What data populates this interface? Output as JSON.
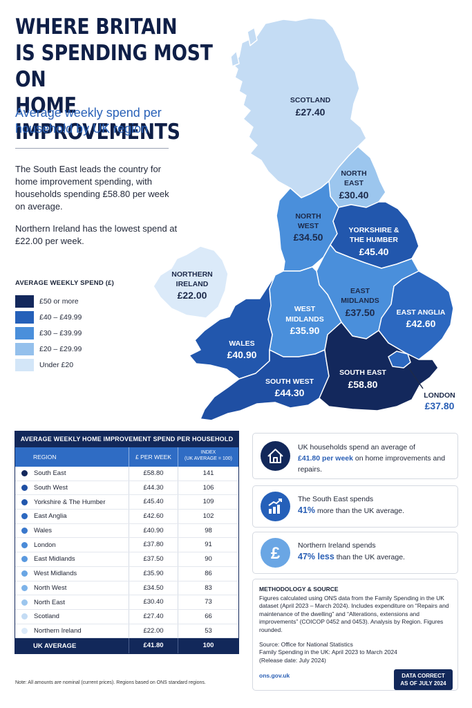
{
  "title_lines": [
    "WHERE BRITAIN",
    "IS SPENDING MOST ON",
    "HOME IMPROVEMENTS"
  ],
  "subtitle": "Average weekly spend per household by UK region",
  "intro": [
    "The South East leads the country for home improvement spending, with households spending £58.80 per week on average.",
    "Northern Ireland has the lowest spend at £22.00 per week."
  ],
  "legend": {
    "title": "AVERAGE WEEKLY SPEND (£)",
    "items": [
      {
        "label": "£50 or more",
        "color": "#13285c"
      },
      {
        "label": "£40 – £49.99",
        "color": "#2560b9"
      },
      {
        "label": "£30 – £39.99",
        "color": "#4a8fdb"
      },
      {
        "label": "£20 – £29.99",
        "color": "#94c0ec"
      },
      {
        "label": "Under £20",
        "color": "#d3e6f8"
      }
    ]
  },
  "map_labels": {
    "scotland": {
      "name": "SCOTLAND",
      "value": "£27.40"
    },
    "north_east": {
      "name1": "NORTH",
      "name2": "EAST",
      "value": "£30.40"
    },
    "north_west": {
      "name1": "NORTH",
      "name2": "WEST",
      "value": "£34.50"
    },
    "yorkshire": {
      "name1": "YORKSHIRE &",
      "name2": "THE HUMBER",
      "value": "£45.40"
    },
    "northern_ireland": {
      "name1": "NORTHERN",
      "name2": "IRELAND",
      "value": "£22.00"
    },
    "east_midlands": {
      "name1": "EAST",
      "name2": "MIDLANDS",
      "value": "£37.50"
    },
    "west_midlands": {
      "name1": "WEST",
      "name2": "MIDLANDS",
      "value": "£35.90"
    },
    "east_anglia": {
      "name": "EAST ANGLIA",
      "value": "£42.60"
    },
    "wales": {
      "name": "WALES",
      "value": "£40.90"
    },
    "south_west": {
      "name": "SOUTH WEST",
      "value": "£44.30"
    },
    "south_east": {
      "name": "SOUTH EAST",
      "value": "£58.80"
    },
    "london": {
      "name": "LONDON",
      "value": "£37.80"
    }
  },
  "table": {
    "caption": "AVERAGE WEEKLY HOME IMPROVEMENT SPEND PER HOUSEHOLD",
    "headers": {
      "region": "REGION",
      "spend": "£ PER WEEK",
      "index1": "INDEX",
      "index2": "(UK AVERAGE = 100)"
    },
    "rows": [
      {
        "region": "South East",
        "spend": "£58.80",
        "index": "141",
        "color": "#13285c"
      },
      {
        "region": "South West",
        "spend": "£44.30",
        "index": "106",
        "color": "#1f4fa3"
      },
      {
        "region": "Yorkshire & The Humber",
        "spend": "£45.40",
        "index": "109",
        "color": "#2257ad"
      },
      {
        "region": "East Anglia",
        "spend": "£42.60",
        "index": "102",
        "color": "#2c68c0"
      },
      {
        "region": "Wales",
        "spend": "£40.90",
        "index": "98",
        "color": "#3a78cc"
      },
      {
        "region": "London",
        "spend": "£37.80",
        "index": "91",
        "color": "#4a8bd8"
      },
      {
        "region": "East Midlands",
        "spend": "£37.50",
        "index": "90",
        "color": "#5a99df"
      },
      {
        "region": "West Midlands",
        "spend": "£35.90",
        "index": "86",
        "color": "#6aa6e4"
      },
      {
        "region": "North West",
        "spend": "£34.50",
        "index": "83",
        "color": "#7db3e9"
      },
      {
        "region": "North East",
        "spend": "£30.40",
        "index": "73",
        "color": "#9cc6ee"
      },
      {
        "region": "Scotland",
        "spend": "£27.40",
        "index": "66",
        "color": "#c4dcf4"
      },
      {
        "region": "Northern Ireland",
        "spend": "£22.00",
        "index": "53",
        "color": "#dbeaf9"
      }
    ],
    "footer": {
      "region": "UK AVERAGE",
      "spend": "£41.80",
      "index": "100"
    }
  },
  "note": "Note: All amounts are nominal (current prices). Regions based on ONS standard regions.",
  "cards": [
    {
      "icon": "house-icon",
      "pre": "UK households spend an average of",
      "highlight": "£41.80 per week",
      "post": " on home improvements and repairs."
    },
    {
      "icon": "bar-chart-up-icon",
      "pre": "The South East spends",
      "highlight": "41%",
      "post": " more than the UK average."
    },
    {
      "icon": "pound-icon",
      "pre": "Northern Ireland spends",
      "highlight": "47% less",
      "post": " than the UK average."
    }
  ],
  "methodology": {
    "title": "METHODOLOGY & SOURCE",
    "body": "Figures calculated using ONS data from the Family Spending in the UK dataset (April 2023 – March 2024). Includes expenditure on “Repairs and maintenance of the dwelling” and “Alterations, extensions and improvements” (COICOP 0452 and 0453). Analysis by Region. Figures rounded.",
    "source_line1": "Source: Office for National Statistics",
    "source_line2": "Family Spending in the UK: April 2023 to March 2024",
    "source_line3": "(Release date: July 2024)",
    "link": "ons.gov.uk"
  },
  "badge": {
    "line1": "DATA CORRECT",
    "line2": "AS OF JULY 2024"
  }
}
